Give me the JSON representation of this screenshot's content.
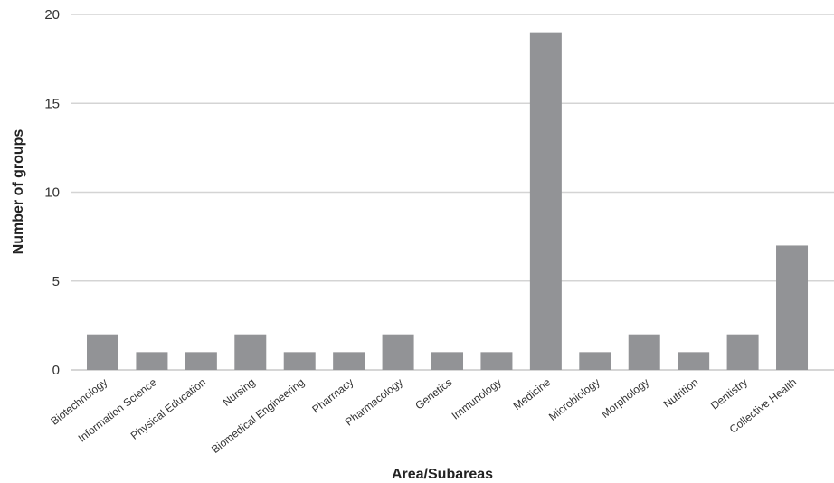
{
  "chart_data": {
    "type": "bar",
    "categories": [
      "Biotechnology",
      "Information Science",
      "Physical Education",
      "Nursing",
      "Biomedical Engineering",
      "Pharmacy",
      "Pharmacology",
      "Genetics",
      "Immunology",
      "Medicine",
      "Microbiology",
      "Morphology",
      "Nutrition",
      "Dentistry",
      "Collective Health"
    ],
    "values": [
      2,
      1,
      1,
      2,
      1,
      1,
      2,
      1,
      1,
      19,
      1,
      2,
      1,
      2,
      7
    ],
    "title": "",
    "xlabel": "Area/Subareas",
    "ylabel": "Number of groups",
    "ylim": [
      0,
      20
    ],
    "yticks": [
      0,
      5,
      10,
      15,
      20
    ],
    "grid": true,
    "colors": {
      "bar": "#929396",
      "grid": "#d4d4d4"
    }
  }
}
